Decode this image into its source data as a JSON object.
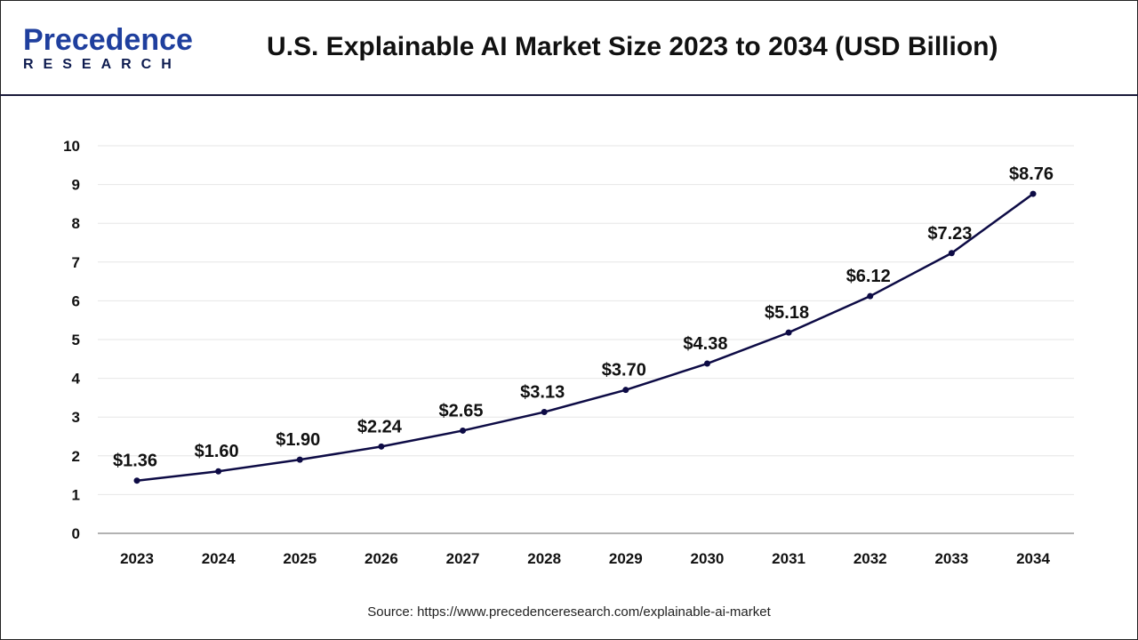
{
  "logo": {
    "line1": "Precedence",
    "line2": "RESEARCH"
  },
  "title": "U.S. Explainable AI Market Size 2023 to 2034 (USD Billion)",
  "source": "Source: https://www.precedenceresearch.com/explainable-ai-market",
  "chart_data": {
    "type": "line",
    "title": "U.S. Explainable AI Market Size 2023 to 2034 (USD Billion)",
    "categories": [
      "2023",
      "2024",
      "2025",
      "2026",
      "2027",
      "2028",
      "2029",
      "2030",
      "2031",
      "2032",
      "2033",
      "2034"
    ],
    "values": [
      1.36,
      1.6,
      1.9,
      2.24,
      2.65,
      3.13,
      3.7,
      4.38,
      5.18,
      6.12,
      7.23,
      8.76
    ],
    "labels": [
      "$1.36",
      "$1.60",
      "$1.90",
      "$2.24",
      "$2.65",
      "$3.13",
      "$3.70",
      "$4.38",
      "$5.18",
      "$6.12",
      "$7.23",
      "$8.76"
    ],
    "ylim": [
      0,
      10
    ],
    "yticks": [
      "0",
      "1",
      "2",
      "3",
      "4",
      "5",
      "6",
      "7",
      "8",
      "9",
      "10"
    ],
    "grid": true,
    "line_color": "#0d0b45"
  }
}
